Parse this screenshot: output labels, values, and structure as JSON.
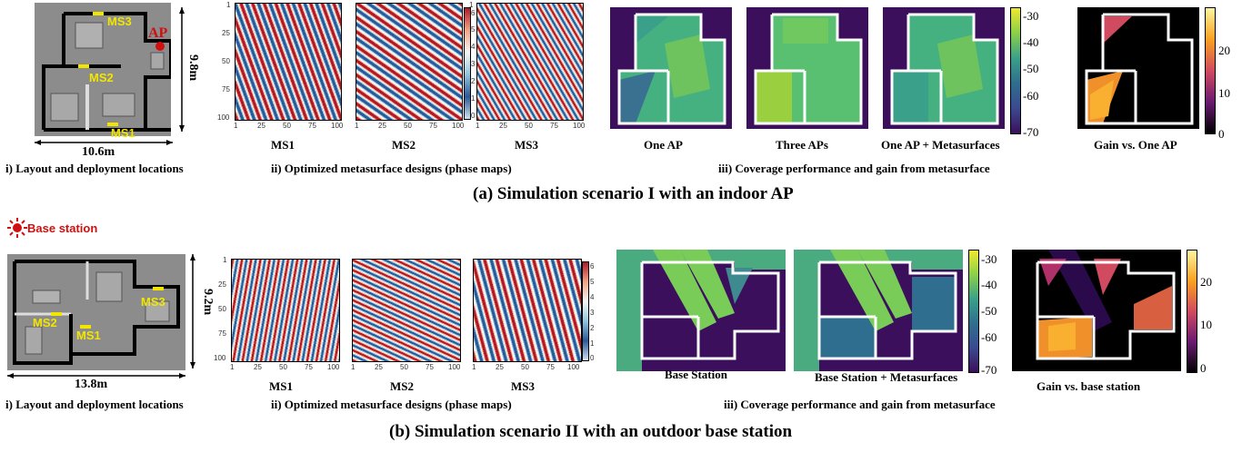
{
  "scenario_a": {
    "caption": "(a) Simulation scenario I with an indoor AP",
    "layout": {
      "caption": "i)  Layout and deployment locations",
      "ap_label": "AP",
      "ms_labels": [
        "MS3",
        "MS2",
        "MS1"
      ],
      "width_label": "10.6m",
      "height_label": "9.8m"
    },
    "phase": {
      "caption": "ii) Optimized metasurface designs (phase maps)",
      "panels": [
        "MS1",
        "MS2",
        "MS3"
      ],
      "y_ticks": [
        "1",
        "25",
        "50",
        "75",
        "100"
      ],
      "x_ticks": [
        "1",
        "25",
        "50",
        "75",
        "100"
      ],
      "colorbar_ticks": [
        "6",
        "5",
        "4",
        "3",
        "2",
        "1",
        "0"
      ]
    },
    "coverage": {
      "caption": "iii) Coverage performance and gain from metasurface",
      "panels": [
        "One AP",
        "Three APs",
        "One AP + Metasurfaces",
        "Gain vs. One AP"
      ],
      "colorbar_ticks": [
        "-30",
        "-40",
        "-50",
        "-60",
        "-70"
      ],
      "gain_ticks": [
        "20",
        "10",
        "0"
      ]
    }
  },
  "scenario_b": {
    "caption": "(b) Simulation scenario II with an outdoor base station",
    "layout": {
      "caption": "i) Layout and deployment locations",
      "bs_label": "Base station",
      "ms_labels": [
        "MS3",
        "MS2",
        "MS1"
      ],
      "width_label": "13.8m",
      "height_label": "9.2m"
    },
    "phase": {
      "caption": "ii) Optimized metasurface designs (phase maps)",
      "panels": [
        "MS1",
        "MS2",
        "MS3"
      ],
      "y_ticks": [
        "1",
        "25",
        "50",
        "75",
        "100"
      ],
      "x_ticks": [
        "1",
        "25",
        "50",
        "75",
        "100"
      ],
      "colorbar_ticks": [
        "6",
        "5",
        "4",
        "3",
        "2",
        "1",
        "0"
      ]
    },
    "coverage": {
      "caption": "iii) Coverage performance and gain from metasurface",
      "panels": [
        "Base Station",
        "Base Station + Metasurfaces",
        "Gain vs. base station"
      ],
      "colorbar_ticks": [
        "-30",
        "-40",
        "-50",
        "-60",
        "-70"
      ],
      "gain_ticks": [
        "20",
        "10",
        "0"
      ]
    }
  },
  "colors": {
    "phase_a": "#b2182b",
    "phase_b": "#2a5a9a",
    "coverage_bg": "#3c0f5c",
    "coverage_mid": "#3aa08a",
    "coverage_high": "#8ad04a",
    "gain_high": "#f9a020",
    "label_yellow": "#f2e600",
    "ap_red": "#d01010"
  }
}
